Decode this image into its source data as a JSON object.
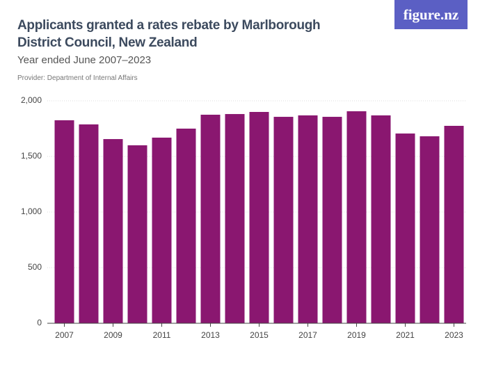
{
  "chart_data": {
    "type": "bar",
    "title": "Applicants granted a rates rebate by Marlborough District Council, New Zealand",
    "subtitle": "Year ended June 2007–2023",
    "provider": "Provider: Department of Internal Affairs",
    "logo": "figure.nz",
    "categories": [
      "2007",
      null,
      "2009",
      null,
      "2011",
      null,
      "2013",
      null,
      "2015",
      null,
      "2017",
      null,
      "2019",
      null,
      "2021",
      null,
      "2023"
    ],
    "values": [
      1825,
      1788,
      1656,
      1600,
      1669,
      1750,
      1875,
      1881,
      1900,
      1856,
      1869,
      1856,
      1906,
      1869,
      1706,
      1681,
      1775
    ],
    "color": "#8a1770",
    "ylim": [
      0,
      2000
    ],
    "yticks": [
      0,
      500,
      {
        "value": 1000,
        "label": "1,000"
      },
      {
        "value": 1500,
        "label": "1,500"
      },
      {
        "value": 2000,
        "label": "2,000"
      }
    ],
    "grid": true
  }
}
